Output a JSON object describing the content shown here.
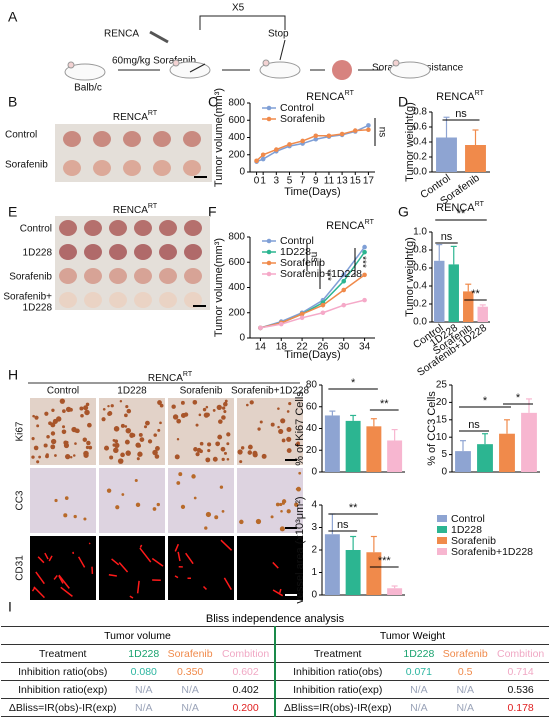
{
  "panel_labels": [
    "A",
    "B",
    "C",
    "D",
    "E",
    "F",
    "G",
    "H",
    "I"
  ],
  "schematic": {
    "cell": "RENCA",
    "dose": "60mg/kg Sorafenib",
    "repeat": "X5",
    "stop": "Stop",
    "mouse": "Balb/c",
    "outcome": "Sorafenib resistance"
  },
  "panel_b": {
    "title": "RENCA",
    "title_sup": "RT",
    "rows": [
      "Control",
      "Sorafenib"
    ]
  },
  "panel_e": {
    "title": "RENCA",
    "title_sup": "RT",
    "rows": [
      [
        "Control"
      ],
      [
        "1D228"
      ],
      [
        "Sorafenib"
      ],
      [
        "Sorafenib+",
        "1D228"
      ]
    ]
  },
  "panel_h": {
    "title": "RENCA",
    "title_sup": "RT",
    "columns": [
      "Control",
      "1D228",
      "Sorafenib",
      "Sorafenib+1D228"
    ],
    "rows": [
      "Ki67",
      "CC3",
      "CD31"
    ],
    "legend": {
      "labels": [
        "Control",
        "1D228",
        "Sorafenib",
        "Sorafenib+1D228"
      ],
      "colors": [
        "#8ea4d2",
        "#2cb591",
        "#f08a4b",
        "#f7b6d0"
      ]
    }
  },
  "chart_data": [
    {
      "type": "line",
      "title": "RENCA",
      "title_sup": "RT",
      "x_label": "Time(Days)",
      "y_label": "Tumor volume(mm³)",
      "x": [
        0,
        1,
        3,
        5,
        7,
        9,
        11,
        13,
        15,
        17
      ],
      "xlim": [
        -1,
        18
      ],
      "xticks": [
        0,
        1,
        3,
        5,
        7,
        9,
        11,
        13,
        15,
        17
      ],
      "ylim": [
        0,
        800
      ],
      "yticks": [
        0,
        200,
        400,
        600,
        800
      ],
      "series": [
        {
          "name": "Control",
          "color": "#7f9fd6",
          "values": [
            120,
            150,
            240,
            300,
            330,
            380,
            410,
            430,
            470,
            540
          ]
        },
        {
          "name": "Sorafenib",
          "color": "#f08a4b",
          "values": [
            130,
            200,
            260,
            320,
            360,
            420,
            420,
            440,
            480,
            490
          ]
        }
      ],
      "annotations": [
        "ns"
      ]
    },
    {
      "type": "bar",
      "title": "RENCA",
      "title_sup": "RT",
      "y_label": "Tumor weight(g)",
      "categories": [
        "Control",
        "Sorafenib"
      ],
      "values": [
        0.46,
        0.36
      ],
      "errors": [
        0.27,
        0.2
      ],
      "colors": [
        "#8ea4d2",
        "#f08a4b"
      ],
      "ylim": [
        0,
        0.8
      ],
      "yticks": [
        {
          "value": 0,
          "label": "0.0"
        },
        0.2,
        0.4,
        0.6,
        0.8
      ],
      "annotations": [
        "ns"
      ]
    },
    {
      "type": "line",
      "title": "RENCA",
      "title_sup": "RT",
      "x_label": "Time(Days)",
      "y_label": "Tumor volume(mm³)",
      "x": [
        14,
        18,
        22,
        26,
        30,
        34
      ],
      "xlim": [
        12,
        36
      ],
      "xticks": [
        14,
        18,
        22,
        26,
        30,
        34
      ],
      "ylim": [
        0,
        800
      ],
      "yticks": [
        0,
        200,
        400,
        600,
        800
      ],
      "series": [
        {
          "name": "Control",
          "color": "#7f9fd6",
          "values": [
            80,
            130,
            200,
            300,
            500,
            720
          ]
        },
        {
          "name": "1D228",
          "color": "#2cb591",
          "values": [
            80,
            120,
            190,
            280,
            450,
            680
          ]
        },
        {
          "name": "Sorafenib",
          "color": "#f08a4b",
          "values": [
            80,
            120,
            190,
            260,
            380,
            500
          ]
        },
        {
          "name": "Sorafenib+1D228",
          "color": "#f5a9c8",
          "values": [
            80,
            110,
            160,
            200,
            260,
            300
          ]
        }
      ],
      "annotations": [
        "ns",
        "***",
        "***"
      ]
    },
    {
      "type": "bar",
      "title": "RENCA",
      "title_sup": "RT",
      "y_label": "Tumor weight(g)",
      "categories": [
        "Control",
        "1D228",
        "Sorafenib",
        "Sorafenib+1D228"
      ],
      "values": [
        0.68,
        0.64,
        0.34,
        0.17
      ],
      "errors": [
        0.18,
        0.2,
        0.08,
        0.02
      ],
      "colors": [
        "#8ea4d2",
        "#2cb591",
        "#f08a4b",
        "#f7b6d0"
      ],
      "ylim": [
        0,
        1
      ],
      "yticks": [
        {
          "value": 0,
          "label": "0.0"
        },
        0.2,
        0.4,
        0.6,
        0.8,
        {
          "value": 1,
          "label": "1.0"
        }
      ],
      "annotations": [
        "**",
        "ns",
        "**"
      ]
    },
    {
      "type": "bar",
      "y_label": "% of Ki67 Cells",
      "categories": [
        null,
        null,
        null,
        null
      ],
      "values": [
        52,
        47,
        42,
        29
      ],
      "errors": [
        4,
        5,
        7,
        10
      ],
      "colors": [
        "#8ea4d2",
        "#2cb591",
        "#f08a4b",
        "#f7b6d0"
      ],
      "ylim": [
        0,
        80
      ],
      "yticks": [
        0,
        20,
        40,
        60,
        80
      ],
      "annotations": [
        "*",
        "**"
      ]
    },
    {
      "type": "bar",
      "y_label": "% of CC3 Cells",
      "categories": [
        null,
        null,
        null,
        null
      ],
      "values": [
        6,
        8,
        11,
        17
      ],
      "errors": [
        3,
        3,
        4,
        4
      ],
      "colors": [
        "#8ea4d2",
        "#2cb591",
        "#f08a4b",
        "#f7b6d0"
      ],
      "ylim": [
        0,
        25
      ],
      "yticks": [
        0,
        5,
        10,
        15,
        20,
        25
      ],
      "annotations": [
        "ns",
        "*",
        "*"
      ]
    },
    {
      "type": "bar",
      "y_label": "vessel area (x10³μm²)",
      "categories": [
        null,
        null,
        null,
        null
      ],
      "values": [
        2.7,
        2.0,
        1.9,
        0.3
      ],
      "errors": [
        0.9,
        0.6,
        0.7,
        0.1
      ],
      "colors": [
        "#8ea4d2",
        "#2cb591",
        "#f08a4b",
        "#f7b6d0"
      ],
      "ylim": [
        0,
        4
      ],
      "yticks": [
        0,
        1,
        2,
        3,
        4
      ],
      "annotations": [
        "**",
        "ns",
        "***"
      ]
    }
  ],
  "table": {
    "title": "Bliss independence analysis",
    "halves": [
      {
        "title": "Tumor volume",
        "header": [
          "Treatment",
          "1D228",
          "Sorafenib",
          "Combition"
        ],
        "rows": [
          [
            "Inhibition ratio(obs)",
            "0.080",
            "0.350",
            "0.602"
          ],
          [
            "Inhibition ratio(exp)",
            "N/A",
            "N/A",
            "0.402"
          ],
          [
            "ΔBliss=IR(obs)-IR(exp)",
            "N/A",
            "N/A",
            "0.200"
          ]
        ]
      },
      {
        "title": "Tumor Weight",
        "header": [
          "Treatment",
          "1D228",
          "Sorafenib",
          "Combition"
        ],
        "rows": [
          [
            "Inhibition ratio(obs)",
            "0.071",
            "0.5",
            "0.714"
          ],
          [
            "Inhibition ratio(exp)",
            "N/A",
            "N/A",
            "0.536"
          ],
          [
            "ΔBliss=IR(obs)-IR(exp)",
            "N/A",
            "N/A",
            "0.178"
          ]
        ]
      }
    ]
  }
}
